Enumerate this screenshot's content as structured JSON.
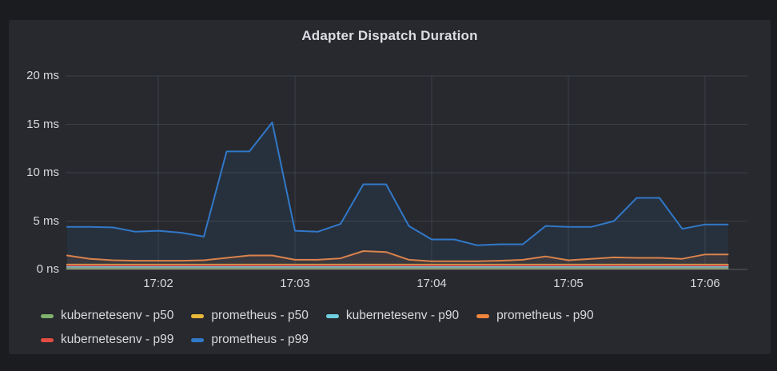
{
  "panel": {
    "title": "Adapter Dispatch Duration"
  },
  "theme": {
    "outer_background": "#1b1c20",
    "panel_background": "#27292e",
    "text_color": "#d8d9da",
    "grid_color": "rgba(204,212,222,0.13)",
    "axis_line_color": "rgba(204,212,222,0.30)"
  },
  "chart_data": {
    "type": "line",
    "title": "Adapter Dispatch Duration",
    "y_unit": "ms",
    "ylim": [
      0,
      20
    ],
    "y_ticks": [
      0,
      5,
      10,
      15,
      20
    ],
    "y_tick_labels": [
      "0 ns",
      "5 ms",
      "10 ms",
      "15 ms",
      "20 ms"
    ],
    "x_tick_labels": [
      "17:02",
      "17:03",
      "17:04",
      "17:05",
      "17:06"
    ],
    "grid": true,
    "legend_position": "bottom",
    "fill_opacity": 0.11,
    "x": [
      "17:01:20",
      "17:01:30",
      "17:01:40",
      "17:01:50",
      "17:02:00",
      "17:02:10",
      "17:02:20",
      "17:02:30",
      "17:02:40",
      "17:02:50",
      "17:03:00",
      "17:03:10",
      "17:03:20",
      "17:03:30",
      "17:03:40",
      "17:03:50",
      "17:04:00",
      "17:04:10",
      "17:04:20",
      "17:04:30",
      "17:04:40",
      "17:04:50",
      "17:05:00",
      "17:05:10",
      "17:05:20",
      "17:05:30",
      "17:05:40",
      "17:05:50",
      "17:06:00",
      "17:06:10"
    ],
    "series": [
      {
        "name": "kubernetesenv - p50",
        "color": "#7EB26D",
        "values": [
          0.1,
          0.1,
          0.1,
          0.1,
          0.1,
          0.1,
          0.1,
          0.1,
          0.1,
          0.1,
          0.1,
          0.1,
          0.1,
          0.1,
          0.1,
          0.1,
          0.1,
          0.1,
          0.1,
          0.1,
          0.1,
          0.1,
          0.1,
          0.1,
          0.1,
          0.1,
          0.1,
          0.1,
          0.1,
          0.1
        ]
      },
      {
        "name": "prometheus - p50",
        "color": "#EAB839",
        "values": [
          0.5,
          0.5,
          0.5,
          0.5,
          0.5,
          0.5,
          0.5,
          0.5,
          0.5,
          0.5,
          0.5,
          0.5,
          0.5,
          0.5,
          0.5,
          0.5,
          0.5,
          0.5,
          0.5,
          0.5,
          0.5,
          0.5,
          0.5,
          0.5,
          0.5,
          0.5,
          0.5,
          0.5,
          0.5,
          0.5
        ]
      },
      {
        "name": "kubernetesenv - p90",
        "color": "#6ED0E0",
        "values": [
          0.27,
          0.27,
          0.27,
          0.27,
          0.27,
          0.27,
          0.27,
          0.27,
          0.27,
          0.27,
          0.27,
          0.27,
          0.27,
          0.27,
          0.27,
          0.27,
          0.27,
          0.27,
          0.27,
          0.27,
          0.27,
          0.27,
          0.27,
          0.27,
          0.27,
          0.27,
          0.27,
          0.27,
          0.27,
          0.27
        ]
      },
      {
        "name": "prometheus - p90",
        "color": "#EF843C",
        "values": [
          1.45,
          1.1,
          0.95,
          0.9,
          0.9,
          0.9,
          0.95,
          1.2,
          1.45,
          1.45,
          1.0,
          1.0,
          1.15,
          1.9,
          1.8,
          1.0,
          0.85,
          0.85,
          0.85,
          0.9,
          1.0,
          1.35,
          0.95,
          1.1,
          1.25,
          1.2,
          1.2,
          1.1,
          1.55,
          1.55
        ]
      },
      {
        "name": "kubernetesenv - p99",
        "color": "#E24D42",
        "values": [
          0.42,
          0.42,
          0.42,
          0.42,
          0.42,
          0.42,
          0.42,
          0.42,
          0.42,
          0.42,
          0.42,
          0.42,
          0.42,
          0.42,
          0.42,
          0.42,
          0.42,
          0.42,
          0.42,
          0.42,
          0.42,
          0.42,
          0.42,
          0.42,
          0.42,
          0.42,
          0.42,
          0.42,
          0.42,
          0.42
        ]
      },
      {
        "name": "prometheus - p99",
        "color": "#3178C9",
        "values": [
          4.4,
          4.4,
          4.35,
          3.9,
          4.0,
          3.8,
          3.4,
          12.2,
          12.2,
          15.2,
          4.0,
          3.9,
          4.7,
          8.8,
          8.8,
          4.5,
          3.1,
          3.1,
          2.5,
          2.6,
          2.6,
          4.5,
          4.4,
          4.4,
          5.0,
          7.4,
          7.4,
          4.2,
          4.65,
          4.65
        ]
      }
    ],
    "legend_rows": [
      [
        0,
        1,
        2,
        3
      ],
      [
        4,
        5
      ]
    ]
  }
}
